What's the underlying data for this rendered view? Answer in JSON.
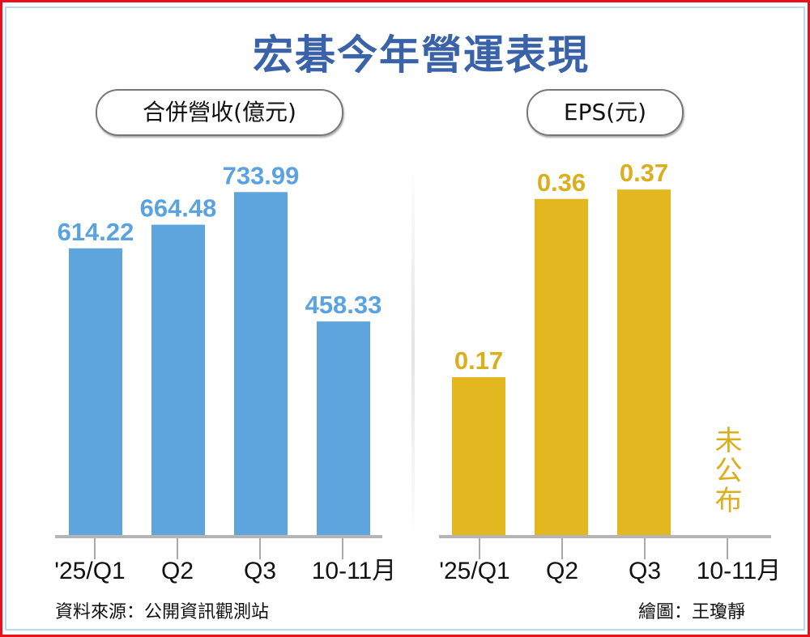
{
  "title": "宏碁今年營運表現",
  "chart_data": [
    {
      "type": "bar",
      "title": "合併營收(億元)",
      "categories": [
        "'25/Q1",
        "Q2",
        "Q3",
        "10-11月"
      ],
      "values": [
        614.22,
        664.48,
        733.99,
        458.33
      ],
      "labels": [
        "614.22",
        "664.48",
        "733.99",
        "458.33"
      ],
      "color": "#5fa5dd",
      "label_color": "#5aa3e0"
    },
    {
      "type": "bar",
      "title": "EPS(元)",
      "categories": [
        "'25/Q1",
        "Q2",
        "Q3",
        "10-11月"
      ],
      "values": [
        0.17,
        0.36,
        0.37,
        null
      ],
      "labels": [
        "0.17",
        "0.36",
        "0.37",
        ""
      ],
      "annotation": "未公布",
      "color": "#e2b720",
      "label_color": "#dbae1c"
    }
  ],
  "footer": {
    "source": "資料來源：公開資訊觀測站",
    "credit": "繪圖：王瓊靜"
  }
}
